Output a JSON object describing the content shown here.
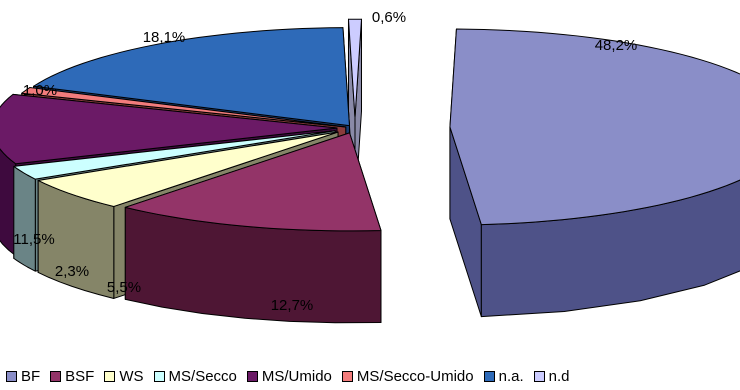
{
  "chart_data": {
    "type": "pie",
    "title": "",
    "style": "3d-exploded",
    "legend_position": "bottom",
    "categories": [
      "BF",
      "BSF",
      "WS",
      "MS/Secco",
      "MS/Umido",
      "MS/Secco-Umido",
      "n.a.",
      "n.d"
    ],
    "values": [
      48.2,
      12.7,
      5.5,
      2.3,
      11.5,
      1.0,
      18.1,
      0.6
    ],
    "labels": [
      "48,2%",
      "12,7%",
      "5,5%",
      "2,3%",
      "11,5%",
      "1,0%",
      "18,1%",
      "0,6%"
    ],
    "colors": [
      "#8A8EC8",
      "#933468",
      "#FFFFCC",
      "#CCFFFF",
      "#6B1A66",
      "#F27C7C",
      "#2E6AB8",
      "#CCCCFF"
    ],
    "side_colors": [
      "#4E5288",
      "#4E1634",
      "#858568",
      "#6A8486",
      "#3E0A3E",
      "#8A3C3C",
      "#1A3C70",
      "#8A8AA8"
    ]
  }
}
